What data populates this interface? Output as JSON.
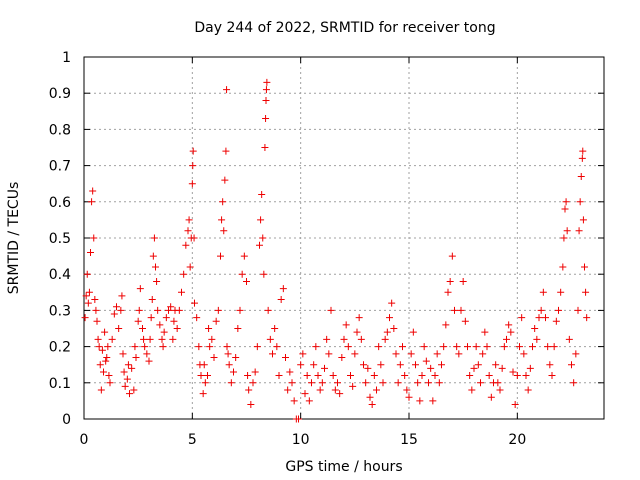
{
  "chart_data": {
    "type": "scatter",
    "title": "Day 244 of 2022, SRMTID for receiver tong",
    "xlabel": "GPS time / hours",
    "ylabel": "SRMTID / TECUs",
    "xlim": [
      0,
      24
    ],
    "ylim": [
      0,
      1
    ],
    "xticks": [
      0,
      5,
      10,
      15,
      20
    ],
    "xtick_labels": [
      "0",
      "5",
      "10",
      "15",
      "20"
    ],
    "yticks": [
      0,
      0.1,
      0.2,
      0.3,
      0.4,
      0.5,
      0.6,
      0.7,
      0.8,
      0.9,
      1
    ],
    "ytick_labels": [
      "0",
      "0.1",
      "0.2",
      "0.3",
      "0.4",
      "0.5",
      "0.6",
      "0.7",
      "0.8",
      "0.9",
      "1"
    ],
    "grid": true,
    "marker": "+",
    "color": "#ee0000",
    "series": [
      {
        "name": "SRMTID",
        "points": [
          [
            0.05,
            0.28
          ],
          [
            0.1,
            0.34
          ],
          [
            0.15,
            0.4
          ],
          [
            0.2,
            0.32
          ],
          [
            0.25,
            0.35
          ],
          [
            0.3,
            0.46
          ],
          [
            0.35,
            0.6
          ],
          [
            0.4,
            0.63
          ],
          [
            0.45,
            0.5
          ],
          [
            0.5,
            0.33
          ],
          [
            0.55,
            0.3
          ],
          [
            0.6,
            0.27
          ],
          [
            0.65,
            0.22
          ],
          [
            0.7,
            0.2
          ],
          [
            0.75,
            0.15
          ],
          [
            0.8,
            0.08
          ],
          [
            0.85,
            0.19
          ],
          [
            0.9,
            0.13
          ],
          [
            0.95,
            0.24
          ],
          [
            1.0,
            0.16
          ],
          [
            1.05,
            0.17
          ],
          [
            1.1,
            0.2
          ],
          [
            1.15,
            0.12
          ],
          [
            1.2,
            0.1
          ],
          [
            1.3,
            0.22
          ],
          [
            1.4,
            0.29
          ],
          [
            1.5,
            0.31
          ],
          [
            1.6,
            0.25
          ],
          [
            1.7,
            0.3
          ],
          [
            1.75,
            0.34
          ],
          [
            1.8,
            0.18
          ],
          [
            1.85,
            0.13
          ],
          [
            1.9,
            0.09
          ],
          [
            2.0,
            0.11
          ],
          [
            2.05,
            0.15
          ],
          [
            2.1,
            0.07
          ],
          [
            2.2,
            0.14
          ],
          [
            2.3,
            0.08
          ],
          [
            2.35,
            0.2
          ],
          [
            2.4,
            0.17
          ],
          [
            2.5,
            0.27
          ],
          [
            2.55,
            0.3
          ],
          [
            2.6,
            0.36
          ],
          [
            2.7,
            0.25
          ],
          [
            2.75,
            0.22
          ],
          [
            2.8,
            0.2
          ],
          [
            2.9,
            0.18
          ],
          [
            3.0,
            0.16
          ],
          [
            3.05,
            0.22
          ],
          [
            3.1,
            0.28
          ],
          [
            3.15,
            0.33
          ],
          [
            3.2,
            0.45
          ],
          [
            3.25,
            0.5
          ],
          [
            3.3,
            0.42
          ],
          [
            3.35,
            0.38
          ],
          [
            3.4,
            0.3
          ],
          [
            3.5,
            0.26
          ],
          [
            3.6,
            0.22
          ],
          [
            3.65,
            0.2
          ],
          [
            3.7,
            0.24
          ],
          [
            3.8,
            0.28
          ],
          [
            3.9,
            0.3
          ],
          [
            4.0,
            0.31
          ],
          [
            4.1,
            0.22
          ],
          [
            4.15,
            0.27
          ],
          [
            4.2,
            0.3
          ],
          [
            4.3,
            0.25
          ],
          [
            4.4,
            0.3
          ],
          [
            4.5,
            0.35
          ],
          [
            4.6,
            0.4
          ],
          [
            4.7,
            0.48
          ],
          [
            4.8,
            0.52
          ],
          [
            4.85,
            0.55
          ],
          [
            4.9,
            0.42
          ],
          [
            4.95,
            0.5
          ],
          [
            5.0,
            0.65
          ],
          [
            5.02,
            0.7
          ],
          [
            5.04,
            0.74
          ],
          [
            5.08,
            0.5
          ],
          [
            5.1,
            0.32
          ],
          [
            5.2,
            0.28
          ],
          [
            5.3,
            0.2
          ],
          [
            5.35,
            0.15
          ],
          [
            5.4,
            0.12
          ],
          [
            5.5,
            0.07
          ],
          [
            5.55,
            0.15
          ],
          [
            5.6,
            0.1
          ],
          [
            5.7,
            0.12
          ],
          [
            5.75,
            0.25
          ],
          [
            5.8,
            0.2
          ],
          [
            5.9,
            0.22
          ],
          [
            6.0,
            0.17
          ],
          [
            6.1,
            0.27
          ],
          [
            6.2,
            0.3
          ],
          [
            6.3,
            0.45
          ],
          [
            6.35,
            0.55
          ],
          [
            6.4,
            0.6
          ],
          [
            6.45,
            0.52
          ],
          [
            6.5,
            0.66
          ],
          [
            6.55,
            0.74
          ],
          [
            6.58,
            0.91
          ],
          [
            6.6,
            0.2
          ],
          [
            6.65,
            0.18
          ],
          [
            6.7,
            0.15
          ],
          [
            6.8,
            0.1
          ],
          [
            6.9,
            0.13
          ],
          [
            7.0,
            0.17
          ],
          [
            7.1,
            0.25
          ],
          [
            7.2,
            0.3
          ],
          [
            7.3,
            0.4
          ],
          [
            7.4,
            0.45
          ],
          [
            7.5,
            0.38
          ],
          [
            7.55,
            0.12
          ],
          [
            7.6,
            0.08
          ],
          [
            7.7,
            0.04
          ],
          [
            7.8,
            0.1
          ],
          [
            7.9,
            0.13
          ],
          [
            8.0,
            0.2
          ],
          [
            8.1,
            0.48
          ],
          [
            8.15,
            0.55
          ],
          [
            8.2,
            0.62
          ],
          [
            8.25,
            0.5
          ],
          [
            8.3,
            0.4
          ],
          [
            8.35,
            0.75
          ],
          [
            8.38,
            0.83
          ],
          [
            8.4,
            0.88
          ],
          [
            8.42,
            0.91
          ],
          [
            8.44,
            0.93
          ],
          [
            8.5,
            0.3
          ],
          [
            8.6,
            0.22
          ],
          [
            8.7,
            0.18
          ],
          [
            8.8,
            0.25
          ],
          [
            8.9,
            0.2
          ],
          [
            9.0,
            0.12
          ],
          [
            9.1,
            0.33
          ],
          [
            9.2,
            0.36
          ],
          [
            9.3,
            0.17
          ],
          [
            9.4,
            0.08
          ],
          [
            9.5,
            0.13
          ],
          [
            9.6,
            0.1
          ],
          [
            9.7,
            0.05
          ],
          [
            9.8,
            0.0
          ],
          [
            9.9,
            0.0
          ],
          [
            10.0,
            0.15
          ],
          [
            10.1,
            0.18
          ],
          [
            10.2,
            0.07
          ],
          [
            10.3,
            0.12
          ],
          [
            10.4,
            0.05
          ],
          [
            10.5,
            0.1
          ],
          [
            10.6,
            0.15
          ],
          [
            10.7,
            0.2
          ],
          [
            10.8,
            0.12
          ],
          [
            10.9,
            0.08
          ],
          [
            11.0,
            0.1
          ],
          [
            11.1,
            0.14
          ],
          [
            11.2,
            0.22
          ],
          [
            11.3,
            0.18
          ],
          [
            11.4,
            0.3
          ],
          [
            11.5,
            0.12
          ],
          [
            11.6,
            0.08
          ],
          [
            11.7,
            0.1
          ],
          [
            11.8,
            0.07
          ],
          [
            11.9,
            0.17
          ],
          [
            12.0,
            0.22
          ],
          [
            12.1,
            0.26
          ],
          [
            12.2,
            0.2
          ],
          [
            12.3,
            0.12
          ],
          [
            12.4,
            0.09
          ],
          [
            12.5,
            0.18
          ],
          [
            12.6,
            0.24
          ],
          [
            12.7,
            0.28
          ],
          [
            12.8,
            0.22
          ],
          [
            12.9,
            0.15
          ],
          [
            13.0,
            0.1
          ],
          [
            13.1,
            0.14
          ],
          [
            13.2,
            0.06
          ],
          [
            13.3,
            0.04
          ],
          [
            13.4,
            0.12
          ],
          [
            13.5,
            0.08
          ],
          [
            13.6,
            0.2
          ],
          [
            13.7,
            0.15
          ],
          [
            13.8,
            0.1
          ],
          [
            13.9,
            0.22
          ],
          [
            14.0,
            0.24
          ],
          [
            14.1,
            0.28
          ],
          [
            14.2,
            0.32
          ],
          [
            14.3,
            0.25
          ],
          [
            14.4,
            0.18
          ],
          [
            14.5,
            0.1
          ],
          [
            14.6,
            0.15
          ],
          [
            14.7,
            0.2
          ],
          [
            14.8,
            0.12
          ],
          [
            14.9,
            0.08
          ],
          [
            15.0,
            0.06
          ],
          [
            15.1,
            0.18
          ],
          [
            15.2,
            0.24
          ],
          [
            15.3,
            0.15
          ],
          [
            15.4,
            0.1
          ],
          [
            15.5,
            0.05
          ],
          [
            15.6,
            0.12
          ],
          [
            15.7,
            0.2
          ],
          [
            15.8,
            0.16
          ],
          [
            15.9,
            0.1
          ],
          [
            16.0,
            0.14
          ],
          [
            16.1,
            0.05
          ],
          [
            16.2,
            0.12
          ],
          [
            16.3,
            0.18
          ],
          [
            16.4,
            0.1
          ],
          [
            16.5,
            0.15
          ],
          [
            16.6,
            0.2
          ],
          [
            16.7,
            0.26
          ],
          [
            16.8,
            0.35
          ],
          [
            16.9,
            0.38
          ],
          [
            17.0,
            0.45
          ],
          [
            17.1,
            0.3
          ],
          [
            17.2,
            0.2
          ],
          [
            17.3,
            0.18
          ],
          [
            17.4,
            0.3
          ],
          [
            17.5,
            0.38
          ],
          [
            17.6,
            0.27
          ],
          [
            17.7,
            0.2
          ],
          [
            17.8,
            0.12
          ],
          [
            17.9,
            0.08
          ],
          [
            18.0,
            0.14
          ],
          [
            18.1,
            0.2
          ],
          [
            18.2,
            0.15
          ],
          [
            18.3,
            0.1
          ],
          [
            18.4,
            0.18
          ],
          [
            18.5,
            0.24
          ],
          [
            18.6,
            0.2
          ],
          [
            18.7,
            0.12
          ],
          [
            18.8,
            0.06
          ],
          [
            18.9,
            0.1
          ],
          [
            19.0,
            0.15
          ],
          [
            19.1,
            0.1
          ],
          [
            19.2,
            0.08
          ],
          [
            19.3,
            0.14
          ],
          [
            19.4,
            0.2
          ],
          [
            19.5,
            0.22
          ],
          [
            19.6,
            0.26
          ],
          [
            19.7,
            0.24
          ],
          [
            19.8,
            0.13
          ],
          [
            19.9,
            0.04
          ],
          [
            20.0,
            0.12
          ],
          [
            20.1,
            0.2
          ],
          [
            20.2,
            0.28
          ],
          [
            20.3,
            0.18
          ],
          [
            20.4,
            0.12
          ],
          [
            20.5,
            0.08
          ],
          [
            20.6,
            0.14
          ],
          [
            20.7,
            0.2
          ],
          [
            20.8,
            0.25
          ],
          [
            20.9,
            0.22
          ],
          [
            21.0,
            0.28
          ],
          [
            21.1,
            0.3
          ],
          [
            21.2,
            0.35
          ],
          [
            21.3,
            0.28
          ],
          [
            21.4,
            0.2
          ],
          [
            21.5,
            0.15
          ],
          [
            21.6,
            0.12
          ],
          [
            21.7,
            0.2
          ],
          [
            21.8,
            0.27
          ],
          [
            21.9,
            0.3
          ],
          [
            22.0,
            0.35
          ],
          [
            22.1,
            0.42
          ],
          [
            22.15,
            0.5
          ],
          [
            22.2,
            0.58
          ],
          [
            22.25,
            0.6
          ],
          [
            22.3,
            0.52
          ],
          [
            22.4,
            0.22
          ],
          [
            22.5,
            0.15
          ],
          [
            22.6,
            0.1
          ],
          [
            22.7,
            0.18
          ],
          [
            22.8,
            0.3
          ],
          [
            22.85,
            0.52
          ],
          [
            22.9,
            0.6
          ],
          [
            22.95,
            0.67
          ],
          [
            23.0,
            0.72
          ],
          [
            23.02,
            0.74
          ],
          [
            23.05,
            0.55
          ],
          [
            23.1,
            0.42
          ],
          [
            23.15,
            0.35
          ],
          [
            23.2,
            0.28
          ]
        ]
      }
    ]
  }
}
